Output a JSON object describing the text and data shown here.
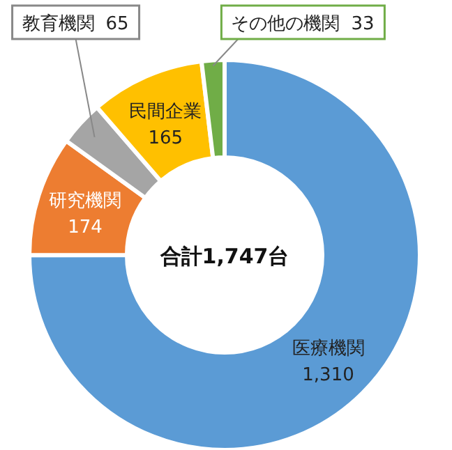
{
  "chart_data": {
    "type": "donut",
    "categories": [
      "医療機関",
      "研究機関",
      "教育機関",
      "民間企業",
      "その他の機関"
    ],
    "values": [
      1310,
      174,
      65,
      165,
      33
    ],
    "value_labels": [
      "1,310",
      "174",
      "65",
      "165",
      "33"
    ],
    "colors": [
      "#5b9bd5",
      "#ed7d31",
      "#a5a5a5",
      "#ffc000",
      "#70ad47"
    ],
    "annotations": [
      "合計1,747台"
    ]
  }
}
